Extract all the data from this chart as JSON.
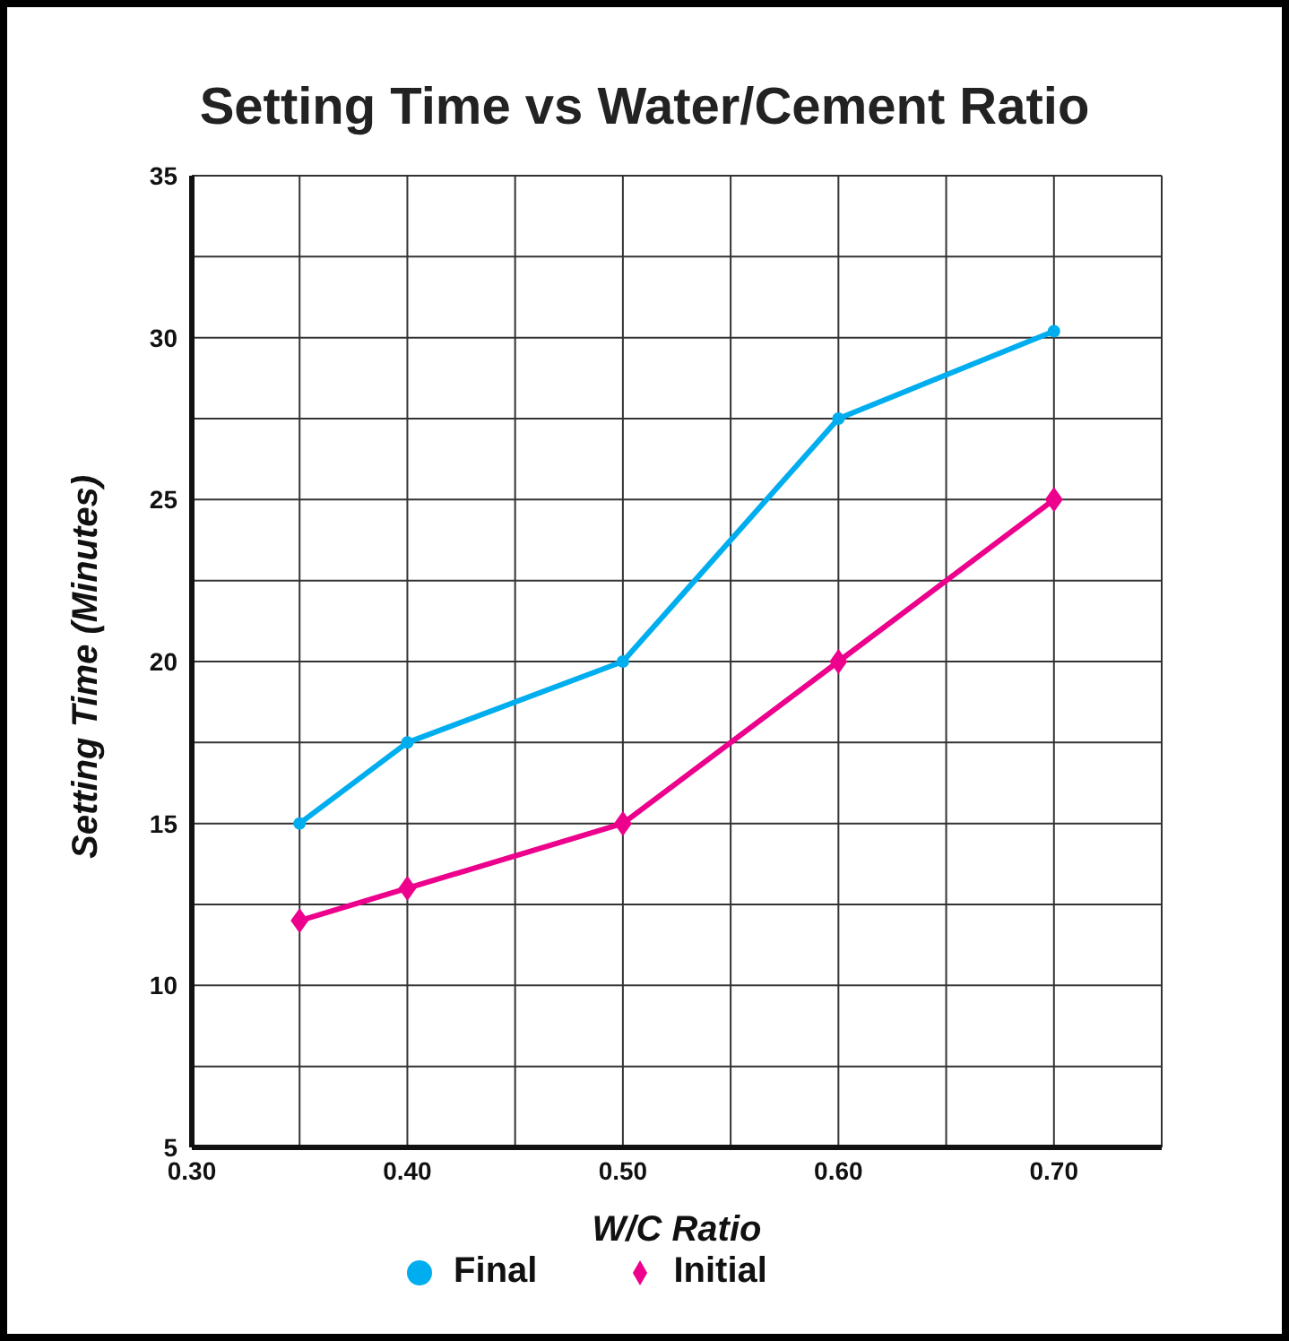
{
  "chart_data": {
    "type": "line",
    "title": "Setting Time vs Water/Cement Ratio",
    "xlabel": "W/C Ratio",
    "ylabel": "Setting Time (Minutes)",
    "x": [
      0.35,
      0.4,
      0.5,
      0.6,
      0.7
    ],
    "series": [
      {
        "name": "Final",
        "color": "#00aeef",
        "marker": "circle",
        "values": [
          15,
          17.5,
          20,
          27.5,
          30.2
        ]
      },
      {
        "name": "Initial",
        "color": "#ec008c",
        "marker": "diamond",
        "values": [
          12,
          13,
          15,
          20,
          25
        ]
      }
    ],
    "xlim": [
      0.3,
      0.75
    ],
    "xticks": [
      {
        "value": 0.3,
        "label": "0.30"
      },
      {
        "value": 0.35,
        "label": null
      },
      {
        "value": 0.4,
        "label": "0.40"
      },
      {
        "value": 0.45,
        "label": null
      },
      {
        "value": 0.5,
        "label": "0.50"
      },
      {
        "value": 0.55,
        "label": null
      },
      {
        "value": 0.6,
        "label": "0.60"
      },
      {
        "value": 0.65,
        "label": null
      },
      {
        "value": 0.7,
        "label": "0.70"
      },
      {
        "value": 0.75,
        "label": null
      }
    ],
    "ylim": [
      5,
      35
    ],
    "yticks": [
      5,
      {
        "value": 7.5,
        "label": null
      },
      10,
      {
        "value": 12.5,
        "label": null
      },
      15,
      {
        "value": 17.5,
        "label": null
      },
      20,
      {
        "value": 22.5,
        "label": null
      },
      25,
      {
        "value": 27.5,
        "label": null
      },
      30,
      {
        "value": 32.5,
        "label": null
      },
      35
    ],
    "grid": true,
    "legend": "bottom",
    "line_style": "solid"
  }
}
